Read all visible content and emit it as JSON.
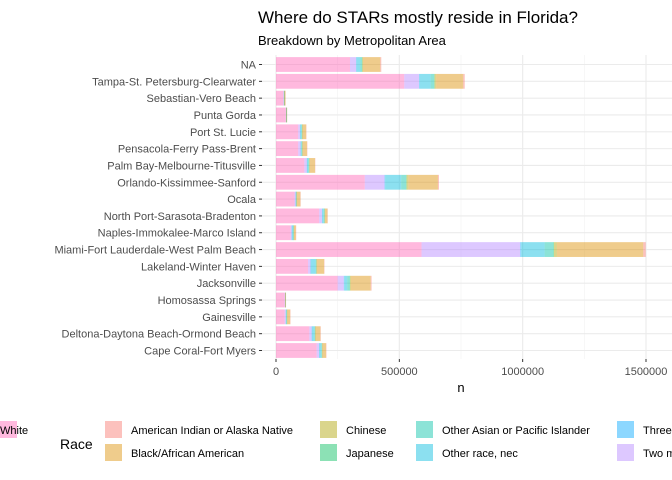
{
  "chart_data": {
    "type": "bar",
    "orientation": "horizontal",
    "stacked": true,
    "title": "Where do STARs mostly reside in Florida?",
    "subtitle": "Breakdown by Metropolitan Area",
    "xlabel": "n",
    "ylabel": "",
    "xlim": [
      0,
      1500000
    ],
    "x_ticks": [
      0,
      500000,
      1000000,
      1500000
    ],
    "x_tick_labels": [
      "0",
      "500000",
      "1000000",
      "1500000"
    ],
    "grid": true,
    "legend_title": "Race",
    "legend_position": "bottom",
    "categories": [
      "NA",
      "Tampa-St. Petersburg-Clearwater",
      "Sebastian-Vero Beach",
      "Punta Gorda",
      "Port St. Lucie",
      "Pensacola-Ferry Pass-Brent",
      "Palm Bay-Melbourne-Titusville",
      "Orlando-Kissimmee-Sanford",
      "Ocala",
      "North Port-Sarasota-Bradenton",
      "Naples-Immokalee-Marco Island",
      "Miami-Fort Lauderdale-West Palm Beach",
      "Lakeland-Winter Haven",
      "Jacksonville",
      "Homosassa Springs",
      "Gainesville",
      "Deltona-Daytona Beach-Ormond Beach",
      "Cape Coral-Fort Myers"
    ],
    "series": [
      {
        "name": "American Indian or Alaska Native",
        "color": "#F8766D",
        "values": [
          4000,
          6000,
          500,
          300,
          1000,
          1500,
          1000,
          4000,
          800,
          1200,
          600,
          10000,
          1500,
          3500,
          400,
          500,
          1500,
          1500
        ]
      },
      {
        "name": "Black/African American",
        "color": "#DB8E00",
        "values": [
          70000,
          110000,
          4000,
          2000,
          15000,
          18000,
          22000,
          120000,
          15000,
          10000,
          8000,
          350000,
          30000,
          80000,
          2000,
          12000,
          20000,
          15000
        ]
      },
      {
        "name": "Chinese",
        "color": "#AEA200",
        "values": [
          3000,
          6000,
          300,
          200,
          1500,
          800,
          1500,
          7000,
          500,
          1500,
          600,
          12000,
          1200,
          4000,
          100,
          1500,
          1200,
          1500
        ]
      },
      {
        "name": "Japanese",
        "color": "#00BD5C",
        "values": [
          800,
          2000,
          100,
          100,
          300,
          800,
          700,
          2000,
          200,
          600,
          300,
          3000,
          300,
          1500,
          100,
          300,
          300,
          500
        ]
      },
      {
        "name": "Other Asian or Pacific Islander",
        "color": "#00C1A7",
        "values": [
          8000,
          14000,
          500,
          300,
          3000,
          3000,
          3500,
          20000,
          1000,
          3000,
          1500,
          35000,
          3000,
          10000,
          200,
          2000,
          3000,
          2500
        ]
      },
      {
        "name": "Other race, nec",
        "color": "#00BADE",
        "values": [
          15000,
          45000,
          1000,
          500,
          4000,
          2500,
          5000,
          65000,
          2000,
          6000,
          6000,
          95000,
          20000,
          12000,
          500,
          1500,
          10000,
          8000
        ]
      },
      {
        "name": "Three or more major races",
        "color": "#00A6FF",
        "values": [
          1000,
          2000,
          200,
          100,
          500,
          500,
          500,
          2500,
          200,
          500,
          300,
          4000,
          500,
          1500,
          100,
          300,
          500,
          500
        ]
      },
      {
        "name": "Two major races",
        "color": "#B385FF",
        "values": [
          25000,
          60000,
          2000,
          1000,
          8000,
          10000,
          10000,
          80000,
          5000,
          12000,
          4000,
          400000,
          10000,
          25000,
          1500,
          5000,
          10000,
          10000
        ]
      },
      {
        "name": "White",
        "color": "#FF63B6",
        "values": [
          300000,
          520000,
          30000,
          40000,
          90000,
          90000,
          115000,
          360000,
          75000,
          175000,
          60000,
          590000,
          130000,
          250000,
          35000,
          35000,
          135000,
          165000
        ]
      }
    ]
  }
}
